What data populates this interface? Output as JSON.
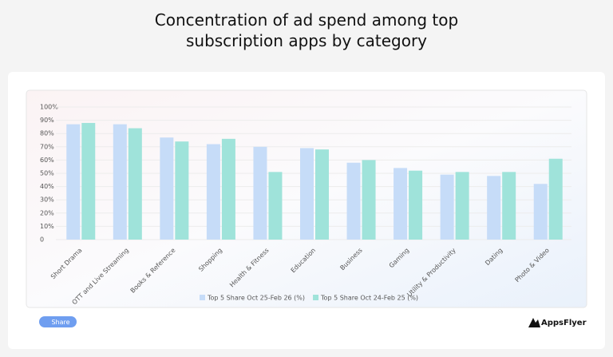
{
  "chart_data": {
    "type": "bar",
    "title": "Concentration of ad spend among top subscription apps by category",
    "categories": [
      "Short Drama",
      "OTT and Live Streaming",
      "Books & Reference",
      "Shopping",
      "Health & Fitness",
      "Education",
      "Business",
      "Gaming",
      "Utility & Productivity",
      "Dating",
      "Photo & Video"
    ],
    "series": [
      {
        "name": "Top 5 Share Oct 25-Feb 26 (%)",
        "color": "#c6dcf8",
        "values": [
          87,
          87,
          77,
          72,
          70,
          69,
          58,
          54,
          49,
          48,
          42
        ]
      },
      {
        "name": "Top 5 Share Oct 24-Feb 25 (%)",
        "color": "#9fe3da",
        "values": [
          88,
          84,
          74,
          76,
          51,
          68,
          60,
          52,
          51,
          51,
          61
        ]
      }
    ],
    "ylim": [
      0,
      100
    ],
    "yticks": [
      0,
      {
        "value": 10,
        "label": "10%"
      },
      {
        "value": 20,
        "label": "20%"
      },
      {
        "value": 30,
        "label": "30%"
      },
      {
        "value": 40,
        "label": "40%"
      },
      {
        "value": 50,
        "label": "50%"
      },
      {
        "value": 60,
        "label": "60%"
      },
      {
        "value": 70,
        "label": "70%"
      },
      {
        "value": 80,
        "label": "80%"
      },
      {
        "value": 90,
        "label": "90%"
      },
      {
        "value": 100,
        "label": "100%"
      }
    ],
    "grid": true,
    "legend_position": "bottom"
  },
  "share_label": "Share",
  "brand": "AppsFlyer"
}
